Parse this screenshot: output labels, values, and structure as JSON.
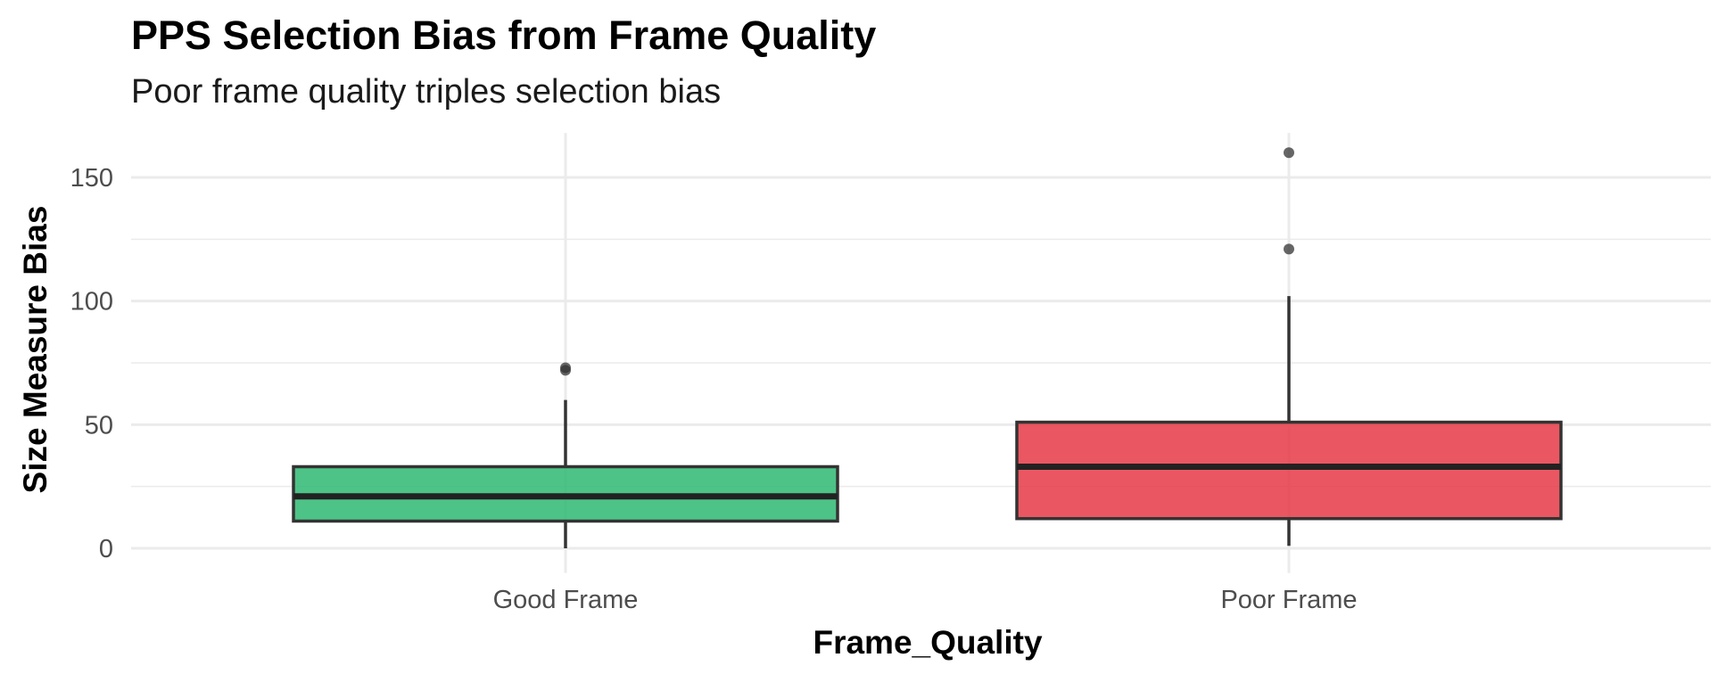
{
  "chart_data": {
    "type": "boxplot",
    "title": "PPS Selection Bias from Frame Quality",
    "subtitle": "Poor frame quality triples selection bias",
    "xlabel": "Frame_Quality",
    "ylabel": "Size Measure Bias",
    "ylim": [
      -10,
      168
    ],
    "y_ticks": [
      0,
      50,
      100,
      150
    ],
    "y_tick_labels": [
      "0",
      "50",
      "100",
      "150"
    ],
    "grid": true,
    "legend": "none",
    "categories": [
      "Good Frame",
      "Poor Frame"
    ],
    "boxes": [
      {
        "category": "Good Frame",
        "color": "#2EB872",
        "whisker_low": 0,
        "q1": 11,
        "median": 21,
        "q3": 33,
        "whisker_high": 60,
        "outliers": [
          72,
          73
        ]
      },
      {
        "category": "Poor Frame",
        "color": "#E63946",
        "whisker_low": 1,
        "q1": 12,
        "median": 33,
        "q3": 51,
        "whisker_high": 102,
        "outliers": [
          121,
          160
        ]
      }
    ]
  }
}
